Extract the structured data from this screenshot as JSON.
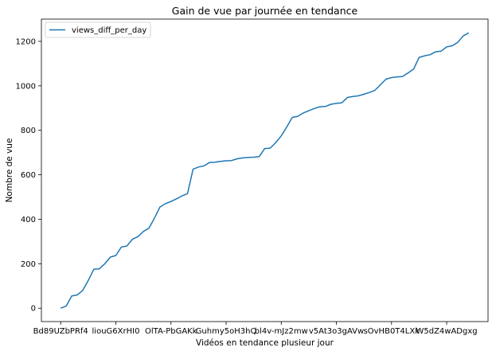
{
  "chart_data": {
    "type": "line",
    "title": "Gain de vue par journée en tendance",
    "xlabel": "Vidéos en tendance plusieur jour",
    "ylabel": "Nombre de vue",
    "x_tick_labels": [
      "Bd89UZbPRf4",
      "liouG6XrHI0",
      "OlTA-PbGAKk",
      "Guhmy5oH3hQ",
      "bl4v-mJz2mw",
      "v5At3o3gAVw",
      "sOvHB0T4LXk",
      "W5dZ4wADgxg"
    ],
    "y_ticks": [
      0,
      200,
      400,
      600,
      800,
      1000,
      1200
    ],
    "ylim": [
      -60,
      1300
    ],
    "grid": false,
    "legend_position": "top-left",
    "series": [
      {
        "name": "views_diff_per_day",
        "color": "#1f77b4",
        "values": [
          0,
          10,
          55,
          60,
          80,
          125,
          175,
          177,
          200,
          230,
          237,
          275,
          280,
          310,
          322,
          345,
          360,
          405,
          455,
          470,
          480,
          492,
          505,
          515,
          625,
          635,
          640,
          655,
          657,
          660,
          663,
          664,
          672,
          676,
          678,
          679,
          682,
          718,
          720,
          745,
          775,
          815,
          858,
          863,
          878,
          888,
          898,
          906,
          907,
          917,
          921,
          924,
          948,
          952,
          955,
          962,
          970,
          980,
          1005,
          1030,
          1037,
          1040,
          1042,
          1058,
          1075,
          1128,
          1135,
          1140,
          1153,
          1156,
          1175,
          1180,
          1195,
          1224,
          1238
        ]
      }
    ]
  }
}
